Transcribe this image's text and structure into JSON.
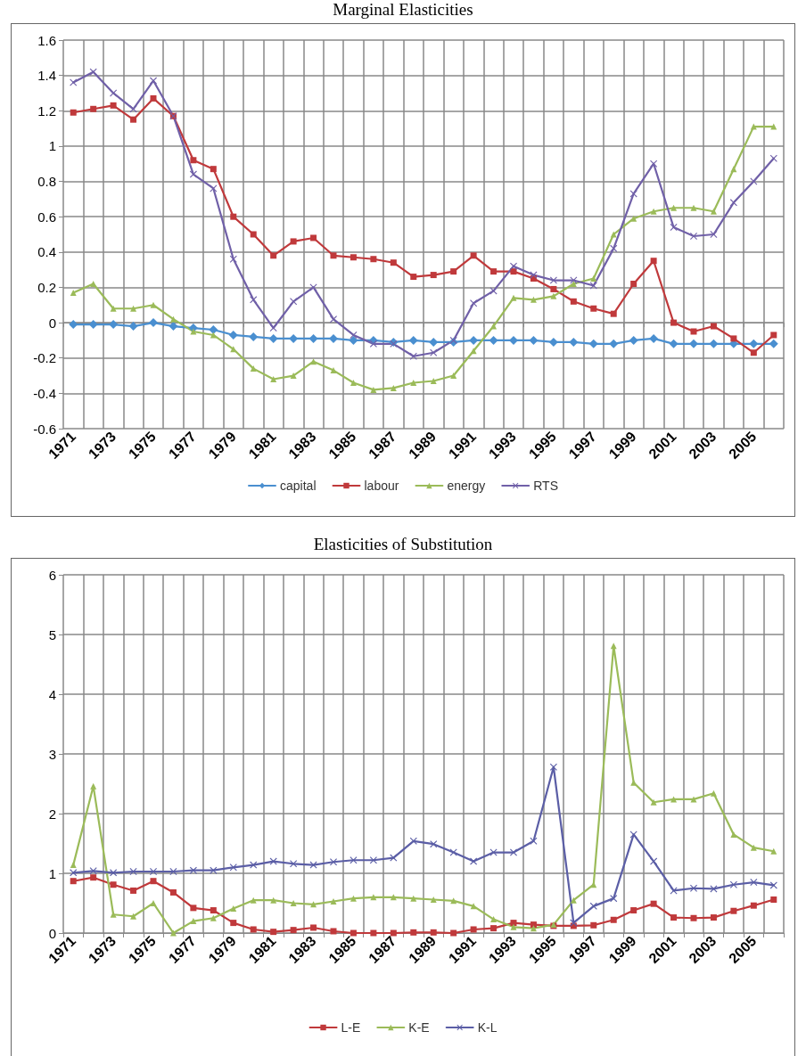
{
  "chart_data": [
    {
      "type": "line",
      "title": "Marginal Elasticities",
      "categories": [
        "1971",
        null,
        "1973",
        null,
        "1975",
        null,
        "1977",
        null,
        "1979",
        null,
        "1981",
        null,
        "1983",
        null,
        "1985",
        null,
        "1987",
        null,
        "1989",
        null,
        "1991",
        null,
        "1993",
        null,
        "1995",
        null,
        "1997",
        null,
        "1999",
        null,
        "2001",
        null,
        "2003",
        null,
        "2005",
        null
      ],
      "series": [
        {
          "name": "capital",
          "color": "#4a8fd0",
          "marker": "diamond",
          "values": [
            -0.01,
            -0.01,
            -0.01,
            -0.02,
            0.0,
            -0.02,
            -0.03,
            -0.04,
            -0.07,
            -0.08,
            -0.09,
            -0.09,
            -0.09,
            -0.09,
            -0.1,
            -0.1,
            -0.11,
            -0.1,
            -0.11,
            -0.11,
            -0.1,
            -0.1,
            -0.1,
            -0.1,
            -0.11,
            -0.11,
            -0.12,
            -0.12,
            -0.1,
            -0.09,
            -0.12,
            -0.12,
            -0.12,
            -0.12,
            -0.12,
            -0.12
          ]
        },
        {
          "name": "labour",
          "color": "#c0393b",
          "marker": "square",
          "values": [
            1.19,
            1.21,
            1.23,
            1.15,
            1.27,
            1.17,
            0.92,
            0.87,
            0.6,
            0.5,
            0.38,
            0.46,
            0.48,
            0.38,
            0.37,
            0.36,
            0.34,
            0.26,
            0.27,
            0.29,
            0.38,
            0.29,
            0.29,
            0.25,
            0.19,
            0.12,
            0.08,
            0.05,
            0.22,
            0.35,
            0.0,
            -0.05,
            -0.02,
            -0.09,
            -0.17,
            -0.07
          ]
        },
        {
          "name": "energy",
          "color": "#9bbb59",
          "marker": "triangle",
          "values": [
            0.17,
            0.22,
            0.08,
            0.08,
            0.1,
            0.02,
            -0.05,
            -0.07,
            -0.15,
            -0.26,
            -0.32,
            -0.3,
            -0.22,
            -0.27,
            -0.34,
            -0.38,
            -0.37,
            -0.34,
            -0.33,
            -0.3,
            -0.16,
            -0.02,
            0.14,
            0.13,
            0.15,
            0.22,
            0.25,
            0.5,
            0.59,
            0.63,
            0.65,
            0.65,
            0.63,
            0.87,
            1.11,
            1.11
          ]
        },
        {
          "name": "RTS",
          "color": "#7060a8",
          "marker": "cross",
          "values": [
            1.36,
            1.42,
            1.3,
            1.21,
            1.37,
            1.17,
            0.84,
            0.76,
            0.36,
            0.13,
            -0.03,
            0.12,
            0.2,
            0.02,
            -0.07,
            -0.12,
            -0.12,
            -0.19,
            -0.17,
            -0.1,
            0.11,
            0.18,
            0.32,
            0.27,
            0.24,
            0.24,
            0.21,
            0.42,
            0.73,
            0.9,
            0.54,
            0.49,
            0.5,
            0.68,
            0.8,
            0.93
          ]
        }
      ],
      "ylim": [
        -0.6,
        1.6
      ],
      "yticks": [
        -0.6,
        -0.4,
        -0.2,
        0,
        0.2,
        0.4,
        0.6,
        0.8,
        1,
        1.2,
        1.4,
        1.6
      ],
      "grid": true,
      "legend": "bottom"
    },
    {
      "type": "line",
      "title": "Elasticities of Substitution",
      "categories": [
        "1971",
        null,
        "1973",
        null,
        "1975",
        null,
        "1977",
        null,
        "1979",
        null,
        "1981",
        null,
        "1983",
        null,
        "1985",
        null,
        "1987",
        null,
        "1989",
        null,
        "1991",
        null,
        "1993",
        null,
        "1995",
        null,
        "1997",
        null,
        "1999",
        null,
        "2001",
        null,
        "2003",
        null,
        "2005",
        null
      ],
      "series": [
        {
          "name": "L-E",
          "color": "#c0393b",
          "marker": "square",
          "values": [
            0.87,
            0.93,
            0.81,
            0.71,
            0.87,
            0.68,
            0.42,
            0.38,
            0.17,
            0.06,
            0.02,
            0.05,
            0.09,
            0.03,
            0.0,
            0.0,
            0.0,
            0.01,
            0.01,
            0.0,
            0.06,
            0.08,
            0.17,
            0.14,
            0.12,
            0.12,
            0.13,
            0.22,
            0.38,
            0.49,
            0.26,
            0.25,
            0.26,
            0.37,
            0.46,
            0.56
          ]
        },
        {
          "name": "K-E",
          "color": "#9bbb59",
          "marker": "triangle",
          "values": [
            1.14,
            2.46,
            0.31,
            0.28,
            0.5,
            0.0,
            0.2,
            0.25,
            0.41,
            0.55,
            0.55,
            0.5,
            0.48,
            0.53,
            0.58,
            0.6,
            0.6,
            0.58,
            0.56,
            0.54,
            0.45,
            0.23,
            0.1,
            0.08,
            0.14,
            0.55,
            0.81,
            4.81,
            2.52,
            2.19,
            2.24,
            2.24,
            2.34,
            1.65,
            1.43,
            1.37
          ]
        },
        {
          "name": "K-L",
          "color": "#5b5ea6",
          "marker": "cross",
          "values": [
            1.01,
            1.04,
            1.01,
            1.03,
            1.03,
            1.03,
            1.05,
            1.05,
            1.1,
            1.14,
            1.2,
            1.16,
            1.14,
            1.19,
            1.22,
            1.22,
            1.26,
            1.54,
            1.49,
            1.35,
            1.2,
            1.35,
            1.35,
            1.54,
            2.78,
            0.17,
            0.45,
            0.58,
            1.65,
            1.2,
            0.71,
            0.75,
            0.74,
            0.81,
            0.85,
            0.8
          ]
        }
      ],
      "ylim": [
        0,
        6
      ],
      "yticks": [
        0,
        1,
        2,
        3,
        4,
        5,
        6
      ],
      "grid": true,
      "legend": "bottom"
    }
  ]
}
